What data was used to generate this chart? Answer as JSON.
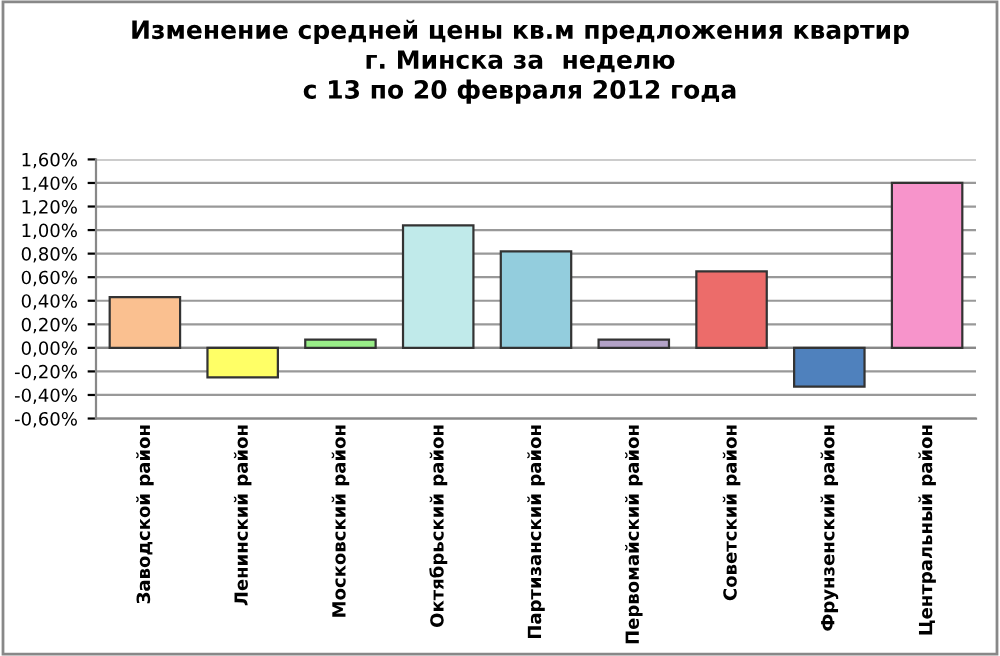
{
  "chart_data": {
    "type": "bar",
    "title": "Изменение средней цены кв.м предложения квартир\nг. Минска за  неделю\nс 13 по 20 февраля 2012 года",
    "categories": [
      "Заводской район",
      "Ленинский район",
      "Московский район",
      "Октябрьский район",
      "Партизанский район",
      "Первомайский район",
      "Советский район",
      "Фрунзенский район",
      "Центральный район"
    ],
    "values": [
      0.43,
      -0.25,
      0.07,
      1.04,
      0.82,
      0.07,
      0.65,
      -0.33,
      1.4
    ],
    "colors": [
      "#fac090",
      "#ffff66",
      "#99ee88",
      "#c0eaea",
      "#93cddd",
      "#b3a2c7",
      "#ec6c6a",
      "#4f81bd",
      "#f794cb"
    ],
    "ylim": [
      -0.6,
      1.6
    ],
    "yticks": [
      {
        "value": -0.6,
        "label": "-0,60%"
      },
      {
        "value": -0.4,
        "label": "-0,40%"
      },
      {
        "value": -0.2,
        "label": "-0,20%"
      },
      {
        "value": 0,
        "label": "0,00%"
      },
      {
        "value": 0.2,
        "label": "0,20%"
      },
      {
        "value": 0.4,
        "label": "0,40%"
      },
      {
        "value": 0.6,
        "label": "0,60%"
      },
      {
        "value": 0.8,
        "label": "0,80%"
      },
      {
        "value": 1.0,
        "label": "1,00%"
      },
      {
        "value": 1.2,
        "label": "1,20%"
      },
      {
        "value": 1.4,
        "label": "1,40%"
      },
      {
        "value": 1.6,
        "label": "1,60%"
      }
    ],
    "grid": "y"
  }
}
